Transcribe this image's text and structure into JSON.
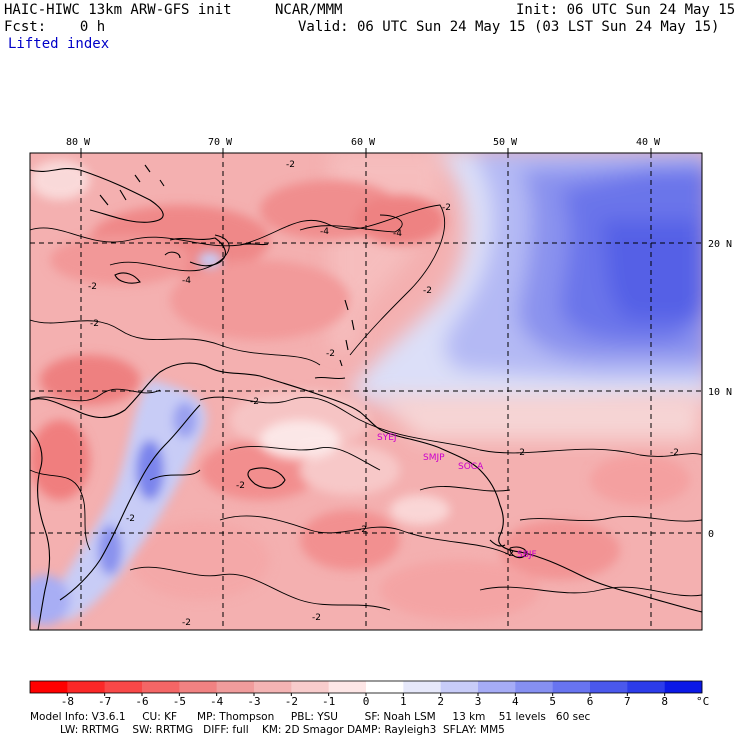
{
  "header": {
    "model_title": "HAIC-HIWC 13km ARW-GFS init",
    "org": "NCAR/MMM",
    "init": "Init: 06 UTC Sun 24 May 15",
    "fcst": "Fcst:    0 h",
    "valid": "Valid: 06 UTC Sun 24 May 15 (03 LST Sun 24 May 15)",
    "field": "Lifted index"
  },
  "axes": {
    "lon_labels": [
      "80 W",
      "70 W",
      "60 W",
      "50 W",
      "40 W"
    ],
    "lat_labels": [
      "20 N",
      "10 N",
      "0"
    ]
  },
  "contour_labels": [
    "-2",
    "-2",
    "-4",
    "-4",
    "-4",
    "-2",
    "-2",
    "-2",
    "-2",
    "-2",
    "-2",
    "-2",
    "-2",
    "-2",
    "-2",
    "-2",
    "-2",
    "-2"
  ],
  "stations": [
    "SYEJ",
    "SMJP",
    "SOCA",
    "SBJF"
  ],
  "colorbar": {
    "unit": "°C",
    "labels": [
      "-8",
      "-7",
      "-6",
      "-5",
      "-4",
      "-3",
      "-2",
      "-1",
      "0",
      "1",
      "2",
      "3",
      "4",
      "5",
      "6",
      "7",
      "8"
    ],
    "colors": [
      "#ff0000",
      "#fb2828",
      "#f84848",
      "#f46666",
      "#f18282",
      "#f09c9c",
      "#f4b4b4",
      "#f8cccc",
      "#fde6e6",
      "#ffffff",
      "#e6e8fa",
      "#c8ccf8",
      "#a6acf6",
      "#8690f2",
      "#6874f0",
      "#4a58ec",
      "#2c3cea",
      "#0a18e6"
    ]
  },
  "footer": {
    "line1": "Model Info: V3.6.1     CU: KF      MP: Thompson     PBL: YSU        SF: Noah LSM     13 km    51 levels   60 sec",
    "line2": "         LW: RRTMG    SW: RRTMG   DIFF: full    KM: 2D Smagor DAMP: Rayleigh3  SFLAY: MM5"
  }
}
